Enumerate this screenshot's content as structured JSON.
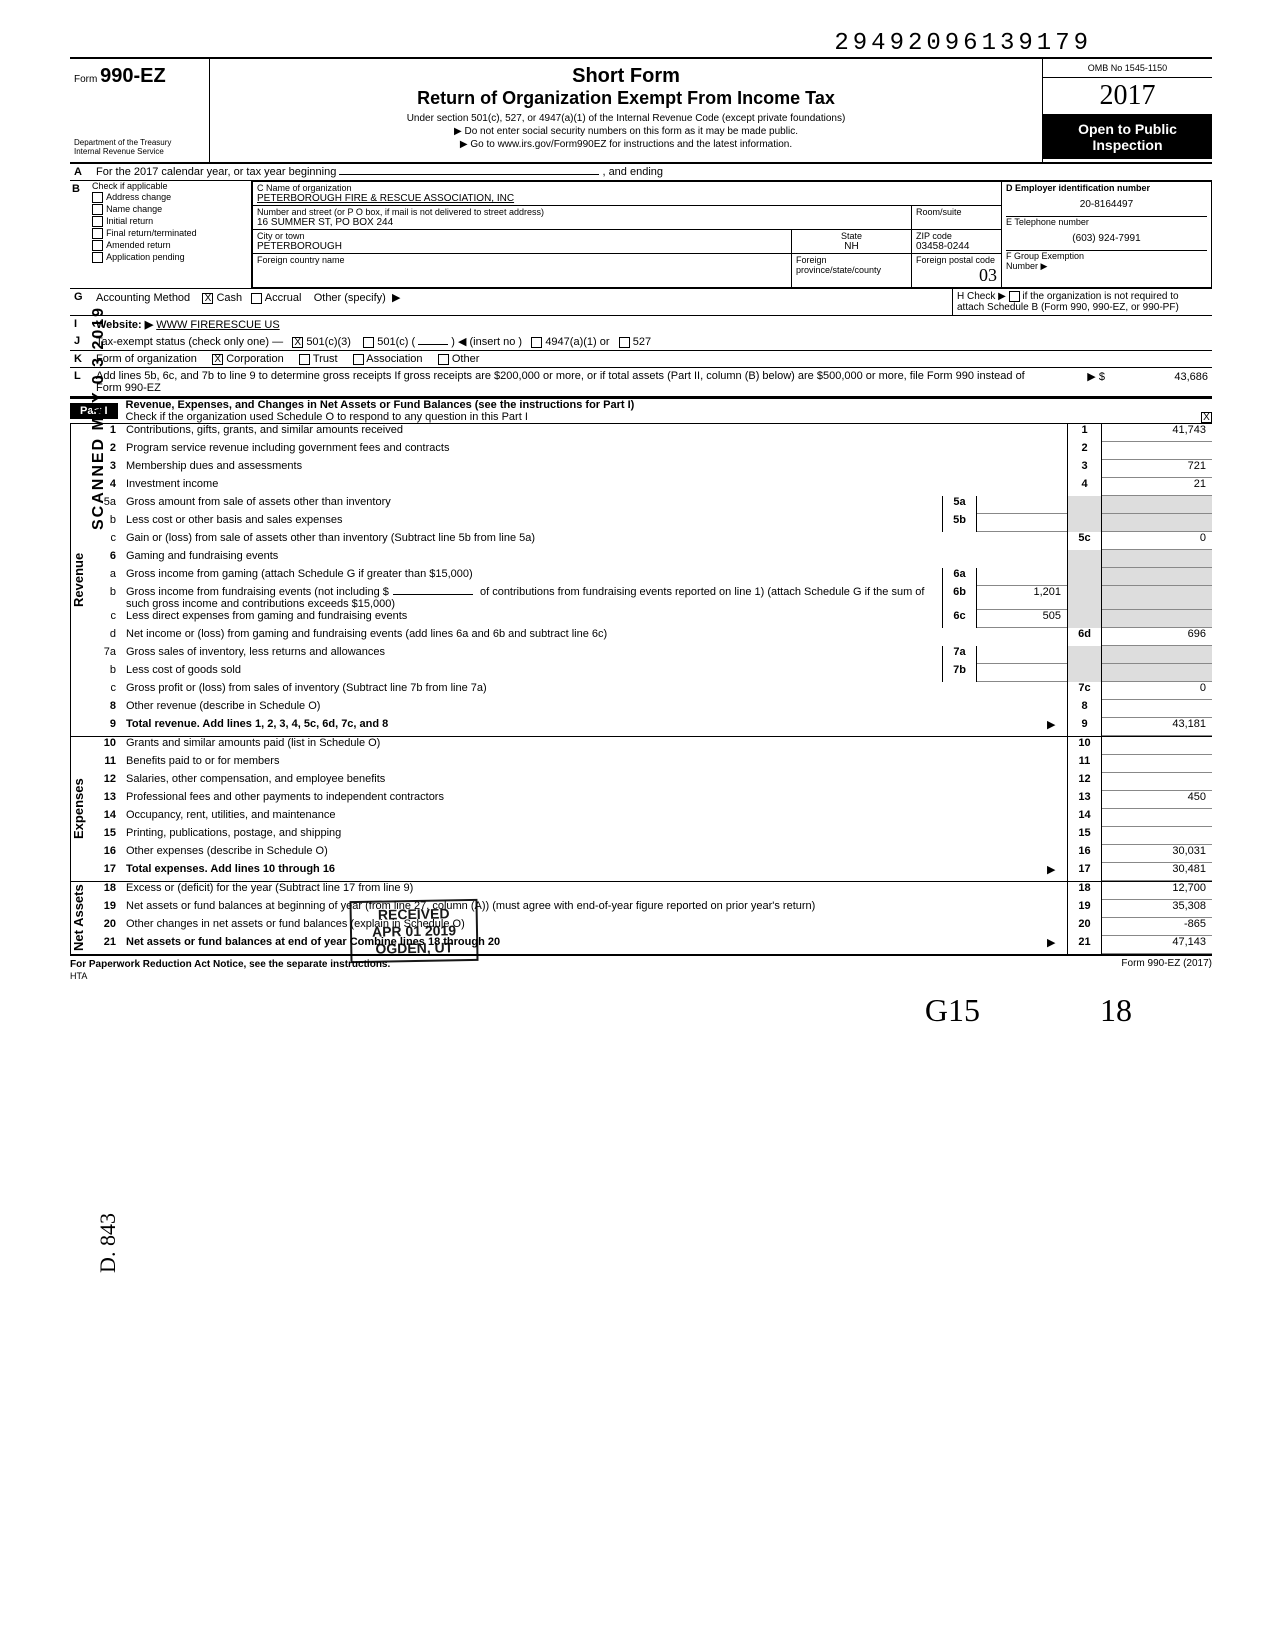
{
  "top_number": "29492096139179",
  "form": {
    "form_label": "Form",
    "form_number": "990-EZ",
    "dept": "Department of the Treasury",
    "irs": "Internal Revenue Service",
    "title1": "Short Form",
    "title2": "Return of Organization Exempt From Income Tax",
    "sub1": "Under section 501(c), 527, or 4947(a)(1) of the Internal Revenue Code (except private foundations)",
    "sub2": "▶  Do not enter social security numbers on this form as it may be made public.",
    "sub3": "▶  Go to www.irs.gov/Form990EZ for instructions and the latest information.",
    "omb": "OMB No 1545-1150",
    "year": "2017",
    "open1": "Open to Public",
    "open2": "Inspection"
  },
  "lineA": "For the 2017 calendar year, or tax year beginning",
  "lineA_end": ", and ending",
  "B": {
    "label": "Check if applicable",
    "opts": [
      "Address change",
      "Name change",
      "Initial return",
      "Final return/terminated",
      "Amended return",
      "Application pending"
    ]
  },
  "C": {
    "name_lbl": "C  Name of organization",
    "name": "PETERBOROUGH FIRE & RESCUE ASSOCIATION, INC",
    "street_lbl": "Number and street (or P O box, if mail is not delivered to street address)",
    "street": "16 SUMMER ST, PO BOX 244",
    "room_lbl": "Room/suite",
    "city_lbl": "City or town",
    "city": "PETERBOROUGH",
    "state_lbl": "State",
    "state": "NH",
    "zip_lbl": "ZIP code",
    "zip": "03458-0244",
    "fc_lbl": "Foreign country name",
    "fp_lbl": "Foreign province/state/county",
    "fpc_lbl": "Foreign postal code"
  },
  "D": {
    "lbl": "D  Employer identification number",
    "val": "20-8164497"
  },
  "E": {
    "lbl": "E  Telephone number",
    "val": "(603) 924-7991"
  },
  "F": {
    "lbl": "F  Group Exemption",
    "lbl2": "Number ▶"
  },
  "G": {
    "lbl": "Accounting Method",
    "cash": "Cash",
    "accrual": "Accrual",
    "other": "Other (specify)"
  },
  "H": {
    "lbl": "H Check ▶",
    "txt": "if the organization is not required to attach Schedule B (Form 990, 990-EZ, or 990-PF)"
  },
  "I": {
    "lbl": "Website: ▶",
    "val": "WWW FIRERESCUE US"
  },
  "J": {
    "lbl": "Tax-exempt status (check only one) —",
    "c3": "501(c)(3)",
    "c": "501(c) (",
    "ins": ") ◀ (insert no )",
    "a1": "4947(a)(1) or",
    "s527": "527"
  },
  "K": {
    "lbl": "Form of organization",
    "corp": "Corporation",
    "trust": "Trust",
    "assoc": "Association",
    "other": "Other"
  },
  "L": {
    "txt": "Add lines 5b, 6c, and 7b to line 9 to determine gross receipts  If gross receipts are $200,000 or more, or if total assets (Part II, column (B) below) are $500,000 or more, file Form 990 instead of Form 990-EZ",
    "sym": "▶ $",
    "val": "43,686"
  },
  "part1": {
    "tag": "Part I",
    "title": "Revenue, Expenses, and Changes in Net Assets or Fund Balances (see the instructions for Part I)",
    "check": "Check if the organization used Schedule O to respond to any question in this Part I"
  },
  "sections": {
    "revenue": "Revenue",
    "expenses": "Expenses",
    "netassets": "Net Assets"
  },
  "lines": {
    "1": {
      "d": "Contributions, gifts, grants, and similar amounts received",
      "a": "41,743"
    },
    "2": {
      "d": "Program service revenue including government fees and contracts",
      "a": ""
    },
    "3": {
      "d": "Membership dues and assessments",
      "a": "721"
    },
    "4": {
      "d": "Investment income",
      "a": "21"
    },
    "5a": {
      "d": "Gross amount from sale of assets other than inventory",
      "sub": "5a"
    },
    "5b": {
      "d": "Less  cost or other basis and sales expenses",
      "sub": "5b"
    },
    "5c": {
      "d": "Gain or (loss) from sale of assets other than inventory (Subtract line 5b from line 5a)",
      "a": "0"
    },
    "6": {
      "d": "Gaming and fundraising events"
    },
    "6a": {
      "d": "Gross income from gaming (attach Schedule G if greater than $15,000)",
      "sub": "6a"
    },
    "6b": {
      "d": "Gross income from fundraising events (not including   $",
      "d2": "of contributions from fundraising events reported on line 1) (attach Schedule G if the sum of such gross income and contributions exceeds $15,000)",
      "sub": "6b",
      "sa": "1,201"
    },
    "6c": {
      "d": "Less  direct expenses from gaming and fundraising events",
      "sub": "6c",
      "sa": "505"
    },
    "6d": {
      "d": "Net income or (loss) from gaming and fundraising events (add lines 6a and 6b and subtract line 6c)",
      "a": "696"
    },
    "7a": {
      "d": "Gross sales of inventory, less returns and allowances",
      "sub": "7a"
    },
    "7b": {
      "d": "Less  cost of goods sold",
      "sub": "7b"
    },
    "7c": {
      "d": "Gross profit or (loss) from sales of inventory (Subtract line 7b from line 7a)",
      "a": "0"
    },
    "8": {
      "d": "Other revenue (describe in Schedule O)",
      "a": ""
    },
    "9": {
      "d": "Total revenue. Add lines 1, 2, 3, 4, 5c, 6d, 7c, and 8",
      "a": "43,181",
      "arrow": "▶"
    },
    "10": {
      "d": "Grants and similar amounts paid (list in Schedule O)",
      "a": ""
    },
    "11": {
      "d": "Benefits paid to or for members",
      "a": ""
    },
    "12": {
      "d": "Salaries, other compensation, and employee benefits",
      "a": ""
    },
    "13": {
      "d": "Professional fees and other payments to independent contractors",
      "a": "450"
    },
    "14": {
      "d": "Occupancy, rent, utilities, and maintenance",
      "a": ""
    },
    "15": {
      "d": "Printing, publications, postage, and shipping",
      "a": ""
    },
    "16": {
      "d": "Other expenses (describe in Schedule O)",
      "a": "30,031"
    },
    "17": {
      "d": "Total expenses. Add lines 10 through 16",
      "a": "30,481",
      "arrow": "▶"
    },
    "18": {
      "d": "Excess or (deficit) for the year (Subtract line 17 from line 9)",
      "a": "12,700"
    },
    "19": {
      "d": "Net assets or fund balances at beginning of year (from line 27, column (A)) (must agree with end-of-year figure reported on prior year's return)",
      "a": "35,308"
    },
    "20": {
      "d": "Other changes in net assets or fund balances (explain in Schedule O)",
      "a": "-865"
    },
    "21": {
      "d": "Net assets or fund balances at end of year  Combine lines 18 through 20",
      "a": "47,143",
      "arrow": "▶"
    }
  },
  "footer": {
    "pra": "For Paperwork Reduction Act Notice, see the separate instructions.",
    "hta": "HTA",
    "form": "Form 990-EZ (2017)"
  },
  "stamp": {
    "l1": "RECEIVED",
    "l2": "APR 01 2019",
    "l3": "OGDEN, UT"
  },
  "side_text": "SCANNED MAY 0 3 2019",
  "side_text2": "D. 843",
  "hand_annot": "03",
  "sig1": "G15",
  "sig2": "18"
}
